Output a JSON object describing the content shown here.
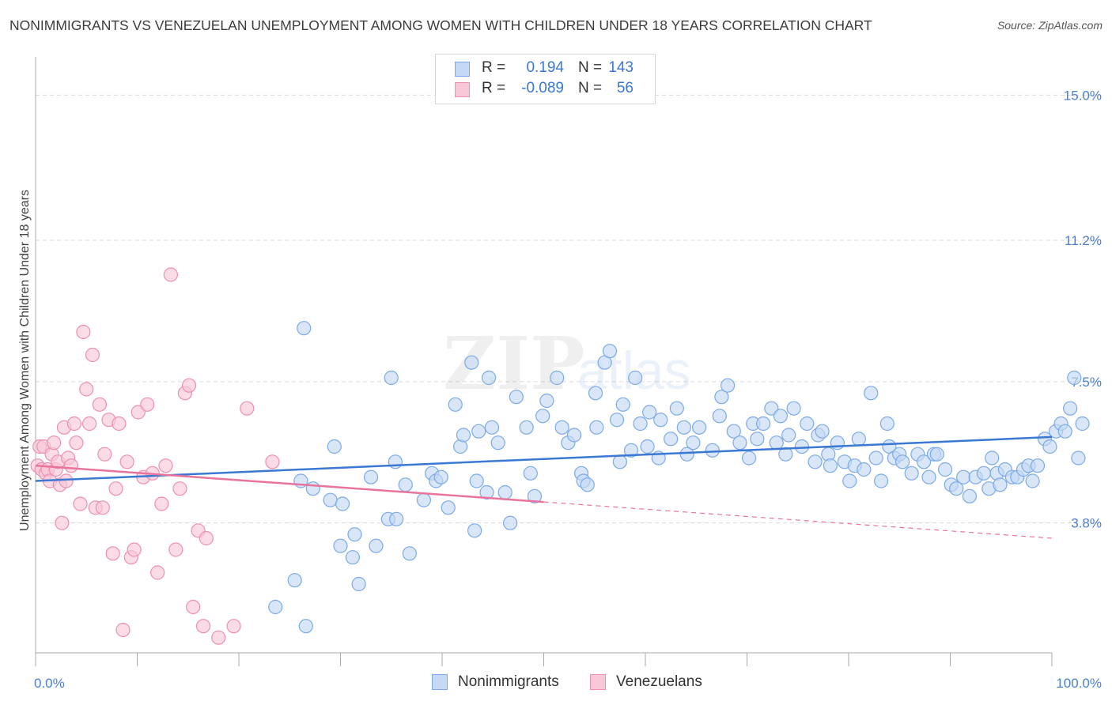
{
  "title": "NONIMMIGRANTS VS VENEZUELAN UNEMPLOYMENT AMONG WOMEN WITH CHILDREN UNDER 18 YEARS CORRELATION CHART",
  "source": "Source: ZipAtlas.com",
  "watermark": "ZIPatlas",
  "legend_top": {
    "rows": [
      {
        "r_label": "R =",
        "r_value": "0.194",
        "n_label": "N =",
        "n_value": "143",
        "color": "#7aaae8",
        "fill": "#c5d9f4"
      },
      {
        "r_label": "R =",
        "r_value": "-0.089",
        "n_label": "N =",
        "n_value": "56",
        "color": "#ee8fb0",
        "fill": "#f8c8d8"
      }
    ]
  },
  "legend_bottom": [
    {
      "label": "Nonimmigrants",
      "color": "#7aaae8",
      "fill": "#c5d9f4"
    },
    {
      "label": "Venezuelans",
      "color": "#ee8fb0",
      "fill": "#f8c8d8"
    }
  ],
  "chart_data": {
    "type": "scatter",
    "title": "NONIMMIGRANTS VS VENEZUELAN UNEMPLOYMENT AMONG WOMEN WITH CHILDREN UNDER 18 YEARS CORRELATION CHART",
    "xlabel": "",
    "ylabel": "Unemployment Among Women with Children Under 18 years",
    "xlim": [
      0,
      100
    ],
    "ylim": [
      0.4,
      16.0
    ],
    "x_tick_labels": [
      "0.0%",
      "100.0%"
    ],
    "y_ticks": [
      3.8,
      7.5,
      11.2,
      15.0
    ],
    "y_tick_labels": [
      "3.8%",
      "7.5%",
      "11.2%",
      "15.0%"
    ],
    "grid": true,
    "legend_position": "top-center",
    "series": [
      {
        "name": "Nonimmigrants",
        "color": "#3a78d4",
        "fill": "#c5d9f4",
        "edge": "#7aaae8",
        "trend": {
          "x": [
            0,
            100
          ],
          "y": [
            4.9,
            6.05
          ]
        },
        "points": [
          [
            23.6,
            1.6
          ],
          [
            25.5,
            2.3
          ],
          [
            26.1,
            4.9
          ],
          [
            26.4,
            8.9
          ],
          [
            26.6,
            1.1
          ],
          [
            27.3,
            4.7
          ],
          [
            29.0,
            4.4
          ],
          [
            29.4,
            5.8
          ],
          [
            30.0,
            3.2
          ],
          [
            30.2,
            4.3
          ],
          [
            31.2,
            2.9
          ],
          [
            31.4,
            3.5
          ],
          [
            31.8,
            2.2
          ],
          [
            33.0,
            5.0
          ],
          [
            33.5,
            3.2
          ],
          [
            34.7,
            3.9
          ],
          [
            35.0,
            7.6
          ],
          [
            35.4,
            5.4
          ],
          [
            35.5,
            3.9
          ],
          [
            36.4,
            4.8
          ],
          [
            36.8,
            3.0
          ],
          [
            38.2,
            4.4
          ],
          [
            39.0,
            5.1
          ],
          [
            39.4,
            4.9
          ],
          [
            39.9,
            5.0
          ],
          [
            40.6,
            4.2
          ],
          [
            41.3,
            6.9
          ],
          [
            41.8,
            5.8
          ],
          [
            42.1,
            6.1
          ],
          [
            42.9,
            8.0
          ],
          [
            43.2,
            3.6
          ],
          [
            43.4,
            4.9
          ],
          [
            43.6,
            6.2
          ],
          [
            44.4,
            4.6
          ],
          [
            44.6,
            7.6
          ],
          [
            44.9,
            6.3
          ],
          [
            45.5,
            5.9
          ],
          [
            46.2,
            4.6
          ],
          [
            46.7,
            3.8
          ],
          [
            47.3,
            7.1
          ],
          [
            48.3,
            6.3
          ],
          [
            48.7,
            5.1
          ],
          [
            49.1,
            4.5
          ],
          [
            49.9,
            6.6
          ],
          [
            50.3,
            7.0
          ],
          [
            51.3,
            7.6
          ],
          [
            51.8,
            6.3
          ],
          [
            52.4,
            5.9
          ],
          [
            53.0,
            6.1
          ],
          [
            53.7,
            5.1
          ],
          [
            53.9,
            4.9
          ],
          [
            54.3,
            4.8
          ],
          [
            55.1,
            7.2
          ],
          [
            55.2,
            6.3
          ],
          [
            56.0,
            8.0
          ],
          [
            56.5,
            8.3
          ],
          [
            57.2,
            6.5
          ],
          [
            57.5,
            5.4
          ],
          [
            57.8,
            6.9
          ],
          [
            58.6,
            5.7
          ],
          [
            59.0,
            7.6
          ],
          [
            59.5,
            6.4
          ],
          [
            60.2,
            5.8
          ],
          [
            60.4,
            6.7
          ],
          [
            61.3,
            5.5
          ],
          [
            61.5,
            6.5
          ],
          [
            62.5,
            6.0
          ],
          [
            63.1,
            6.8
          ],
          [
            63.8,
            6.3
          ],
          [
            64.1,
            5.6
          ],
          [
            64.7,
            5.9
          ],
          [
            65.3,
            6.3
          ],
          [
            66.6,
            5.7
          ],
          [
            67.3,
            6.6
          ],
          [
            67.5,
            7.1
          ],
          [
            68.1,
            7.4
          ],
          [
            68.7,
            6.2
          ],
          [
            69.3,
            5.9
          ],
          [
            70.2,
            5.5
          ],
          [
            70.6,
            6.4
          ],
          [
            71.0,
            6.0
          ],
          [
            71.6,
            6.4
          ],
          [
            72.4,
            6.8
          ],
          [
            72.9,
            5.9
          ],
          [
            73.3,
            6.6
          ],
          [
            73.8,
            5.6
          ],
          [
            74.1,
            6.1
          ],
          [
            74.6,
            6.8
          ],
          [
            75.4,
            5.8
          ],
          [
            75.9,
            6.4
          ],
          [
            76.7,
            5.4
          ],
          [
            77.0,
            6.1
          ],
          [
            77.4,
            6.2
          ],
          [
            78.0,
            5.6
          ],
          [
            78.2,
            5.3
          ],
          [
            78.9,
            5.9
          ],
          [
            79.6,
            5.4
          ],
          [
            80.1,
            4.9
          ],
          [
            80.6,
            5.3
          ],
          [
            81.0,
            6.0
          ],
          [
            81.5,
            5.2
          ],
          [
            82.2,
            7.2
          ],
          [
            82.7,
            5.5
          ],
          [
            83.2,
            4.9
          ],
          [
            83.8,
            6.4
          ],
          [
            84.0,
            5.8
          ],
          [
            84.5,
            5.5
          ],
          [
            85.0,
            5.6
          ],
          [
            85.3,
            5.4
          ],
          [
            86.2,
            5.1
          ],
          [
            86.8,
            5.6
          ],
          [
            87.4,
            5.4
          ],
          [
            87.9,
            5.0
          ],
          [
            88.4,
            5.6
          ],
          [
            88.7,
            5.6
          ],
          [
            89.5,
            5.2
          ],
          [
            90.1,
            4.8
          ],
          [
            90.6,
            4.7
          ],
          [
            91.3,
            5.0
          ],
          [
            91.9,
            4.5
          ],
          [
            92.5,
            5.0
          ],
          [
            93.3,
            5.1
          ],
          [
            93.8,
            4.7
          ],
          [
            94.1,
            5.5
          ],
          [
            94.6,
            5.1
          ],
          [
            94.9,
            4.8
          ],
          [
            95.4,
            5.2
          ],
          [
            96.1,
            5.0
          ],
          [
            96.6,
            5.0
          ],
          [
            97.2,
            5.2
          ],
          [
            97.7,
            5.3
          ],
          [
            98.1,
            4.9
          ],
          [
            98.6,
            5.3
          ],
          [
            99.3,
            6.0
          ],
          [
            99.8,
            5.8
          ],
          [
            100.4,
            6.2
          ],
          [
            100.9,
            6.4
          ],
          [
            101.3,
            6.2
          ],
          [
            101.8,
            6.8
          ],
          [
            102.2,
            7.6
          ],
          [
            102.6,
            5.5
          ],
          [
            103.0,
            6.4
          ]
        ]
      },
      {
        "name": "Venezuelans",
        "color": "#e8749c",
        "fill": "#f8c8d8",
        "edge": "#ee8fb0",
        "trend": {
          "x": [
            0,
            50
          ],
          "y": [
            5.3,
            4.35
          ]
        },
        "trend_extended": {
          "x": [
            50,
            100
          ],
          "y": [
            4.35,
            3.4
          ]
        },
        "points": [
          [
            0.2,
            5.3
          ],
          [
            0.4,
            5.8
          ],
          [
            0.6,
            5.2
          ],
          [
            0.8,
            5.8
          ],
          [
            1.0,
            5.1
          ],
          [
            1.2,
            5.2
          ],
          [
            1.4,
            4.9
          ],
          [
            1.6,
            5.6
          ],
          [
            1.8,
            5.9
          ],
          [
            2.0,
            5.2
          ],
          [
            2.2,
            5.4
          ],
          [
            2.4,
            4.8
          ],
          [
            2.6,
            3.8
          ],
          [
            2.8,
            6.3
          ],
          [
            3.0,
            4.9
          ],
          [
            3.2,
            5.5
          ],
          [
            3.5,
            5.3
          ],
          [
            3.8,
            6.4
          ],
          [
            4.0,
            5.9
          ],
          [
            4.4,
            4.3
          ],
          [
            4.7,
            8.8
          ],
          [
            5.0,
            7.3
          ],
          [
            5.3,
            6.4
          ],
          [
            5.6,
            8.2
          ],
          [
            5.9,
            4.2
          ],
          [
            6.3,
            6.9
          ],
          [
            6.6,
            4.2
          ],
          [
            6.8,
            5.6
          ],
          [
            7.2,
            6.5
          ],
          [
            7.6,
            3.0
          ],
          [
            7.9,
            4.7
          ],
          [
            8.2,
            6.4
          ],
          [
            8.6,
            1.0
          ],
          [
            9.0,
            5.4
          ],
          [
            9.4,
            2.9
          ],
          [
            9.7,
            3.1
          ],
          [
            10.1,
            6.7
          ],
          [
            10.6,
            5.0
          ],
          [
            11.0,
            6.9
          ],
          [
            11.5,
            5.1
          ],
          [
            12.0,
            2.5
          ],
          [
            12.4,
            4.3
          ],
          [
            12.8,
            5.3
          ],
          [
            13.3,
            10.3
          ],
          [
            13.8,
            3.1
          ],
          [
            14.2,
            4.7
          ],
          [
            14.7,
            7.2
          ],
          [
            15.1,
            7.4
          ],
          [
            15.5,
            1.6
          ],
          [
            16.0,
            3.6
          ],
          [
            16.5,
            1.1
          ],
          [
            16.8,
            3.4
          ],
          [
            18.0,
            0.8
          ],
          [
            19.5,
            1.1
          ],
          [
            20.8,
            6.8
          ],
          [
            23.3,
            5.4
          ]
        ]
      }
    ]
  }
}
